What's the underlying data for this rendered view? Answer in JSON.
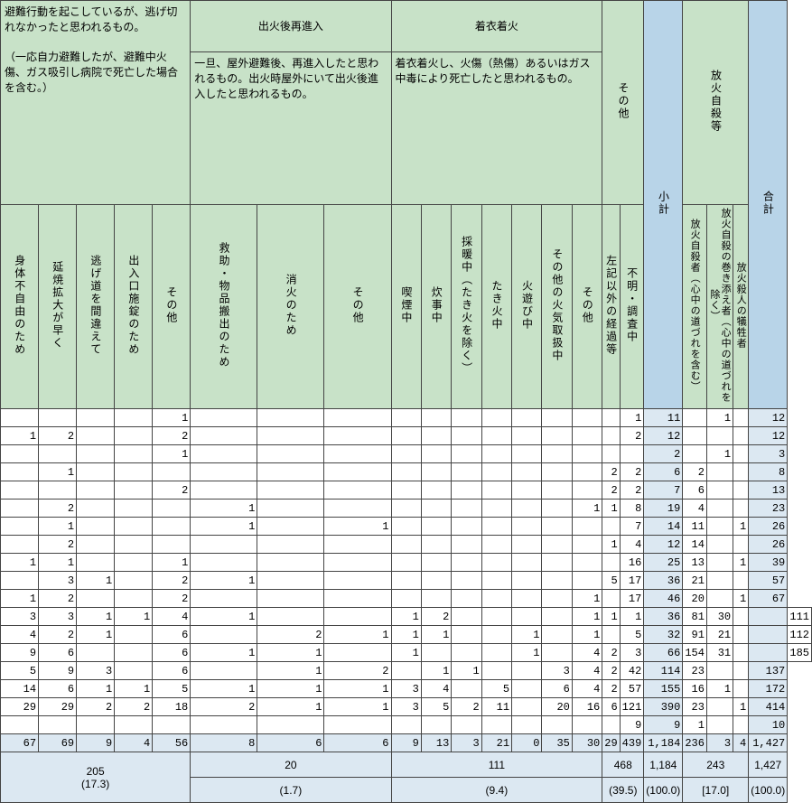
{
  "colors": {
    "green": "#c8e2c8",
    "blue_hdr": "#b8d4e8",
    "blue_cell": "#dce8f2"
  },
  "top_headers": {
    "reentry_title": "出火後再進入",
    "clothing_title": "着衣着火",
    "evacuation_desc": "避難行動を起こしているが、逃げ切れなかったと思われるもの。\n\n（一応自力避難したが、避難中火傷、ガス吸引し病院で死亡した場合を含む。）",
    "reentry_desc": "一旦、屋外避難後、再進入したと思われるもの。出火時屋外にいて出火後進入したと思われるもの。",
    "clothing_desc": "着衣着火し、火傷（熱傷）あるいはガス中毒により死亡したと思われるもの。",
    "other": "その他",
    "subtotal": "小計",
    "arson": "放火自殺等",
    "total": "合計"
  },
  "sub_headers": [
    "身体不自由のため",
    "延焼拡大が早く",
    "逃げ道を間違えて",
    "出入口施錠のため",
    "その他",
    "救助・物品搬出のため",
    "消火のため",
    "その他",
    "喫煙中",
    "炊事中",
    "採暖中（たき火を除く）",
    "たき火中",
    "火遊び中",
    "その他の火気取扱中",
    "その他",
    "左記以外の経過等",
    "不明・調査中"
  ],
  "sub_headers_blue": [
    "",
    "放火自殺者（心中の道づれを含む）",
    "放火自殺の巻き添え者（心中の道づれを除く）",
    "放火殺人の犠牲者",
    ""
  ],
  "rows": [
    [
      "",
      "",
      "",
      "",
      "1",
      "",
      "",
      "",
      "",
      "",
      "",
      "",
      "",
      "",
      "",
      "",
      "1",
      "11",
      "",
      "1",
      "",
      "12"
    ],
    [
      "1",
      "2",
      "",
      "",
      "2",
      "",
      "",
      "",
      "",
      "",
      "",
      "",
      "",
      "",
      "",
      "",
      "2",
      "12",
      "",
      "",
      "",
      "12"
    ],
    [
      "",
      "",
      "",
      "",
      "1",
      "",
      "",
      "",
      "",
      "",
      "",
      "",
      "",
      "",
      "",
      "",
      "",
      "2",
      "",
      "1",
      "",
      "3"
    ],
    [
      "",
      "1",
      "",
      "",
      "",
      "",
      "",
      "",
      "",
      "",
      "",
      "",
      "",
      "",
      "",
      "2",
      "2",
      "6",
      "2",
      "",
      "",
      "8"
    ],
    [
      "",
      "",
      "",
      "",
      "2",
      "",
      "",
      "",
      "",
      "",
      "",
      "",
      "",
      "",
      "",
      "2",
      "2",
      "7",
      "6",
      "",
      "",
      "13"
    ],
    [
      "",
      "2",
      "",
      "",
      "",
      "1",
      "",
      "",
      "",
      "",
      "",
      "",
      "",
      "",
      "1",
      "1",
      "8",
      "19",
      "4",
      "",
      "",
      "23"
    ],
    [
      "",
      "1",
      "",
      "",
      "",
      "1",
      "",
      "1",
      "",
      "",
      "",
      "",
      "",
      "",
      "",
      "",
      "7",
      "14",
      "11",
      "",
      "1",
      "26"
    ],
    [
      "",
      "2",
      "",
      "",
      "",
      "",
      "",
      "",
      "",
      "",
      "",
      "",
      "",
      "",
      "",
      "1",
      "4",
      "12",
      "14",
      "",
      "",
      "26"
    ],
    [
      "1",
      "1",
      "",
      "",
      "1",
      "",
      "",
      "",
      "",
      "",
      "",
      "",
      "",
      "",
      "",
      "",
      "16",
      "25",
      "13",
      "",
      "1",
      "39"
    ],
    [
      "",
      "3",
      "1",
      "",
      "2",
      "1",
      "",
      "",
      "",
      "",
      "",
      "",
      "",
      "",
      "",
      "5",
      "17",
      "36",
      "21",
      "",
      "",
      "57"
    ],
    [
      "1",
      "2",
      "",
      "",
      "2",
      "",
      "",
      "",
      "",
      "",
      "",
      "",
      "",
      "",
      "1",
      "",
      "17",
      "46",
      "20",
      "",
      "1",
      "67"
    ],
    [
      "3",
      "3",
      "1",
      "1",
      "4",
      "1",
      "",
      "",
      "1",
      "2",
      "",
      "",
      "",
      "",
      "1",
      "1",
      "1",
      "36",
      "81",
      "30",
      "",
      "",
      "111"
    ],
    [
      "4",
      "2",
      "1",
      "",
      "6",
      "",
      "2",
      "1",
      "1",
      "1",
      "",
      "",
      "1",
      "",
      "1",
      "",
      "5",
      "32",
      "91",
      "21",
      "",
      "",
      "112"
    ],
    [
      "9",
      "6",
      "",
      "",
      "6",
      "1",
      "1",
      "",
      "1",
      "",
      "",
      "",
      "1",
      "",
      "4",
      "2",
      "3",
      "66",
      "154",
      "31",
      "",
      "",
      "185"
    ],
    [
      "5",
      "9",
      "3",
      "",
      "6",
      "",
      "1",
      "2",
      "",
      "1",
      "1",
      "",
      "",
      "3",
      "4",
      "2",
      "42",
      "114",
      "23",
      "",
      "",
      "137"
    ],
    [
      "14",
      "6",
      "1",
      "1",
      "5",
      "1",
      "1",
      "1",
      "3",
      "4",
      "",
      "5",
      "",
      "6",
      "4",
      "2",
      "57",
      "155",
      "16",
      "1",
      "",
      "172"
    ],
    [
      "29",
      "29",
      "2",
      "2",
      "18",
      "2",
      "1",
      "1",
      "3",
      "5",
      "2",
      "11",
      "",
      "20",
      "16",
      "6",
      "121",
      "390",
      "23",
      "",
      "1",
      "414"
    ],
    [
      "",
      "",
      "",
      "",
      "",
      "",
      "",
      "",
      "",
      "",
      "",
      "",
      "",
      "",
      "",
      "",
      "9",
      "9",
      "1",
      "",
      "",
      "10"
    ]
  ],
  "totals": [
    "67",
    "69",
    "9",
    "4",
    "56",
    "8",
    "6",
    "6",
    "9",
    "13",
    "3",
    "21",
    "0",
    "35",
    "30",
    "29",
    "439",
    "1,184",
    "236",
    "3",
    "4",
    "1,427"
  ],
  "summary1": {
    "c1": "205",
    "c2": "20",
    "c3": "111",
    "c4": "468",
    "c5": "1,184",
    "c6": "243",
    "c7": "1,427"
  },
  "summary2": {
    "c1": "(17.3)",
    "c2": "(1.7)",
    "c3": "(9.4)",
    "c4": "(39.5)",
    "c5": "(100.0)",
    "c6": "[17.0]",
    "c7": "(100.0)"
  }
}
